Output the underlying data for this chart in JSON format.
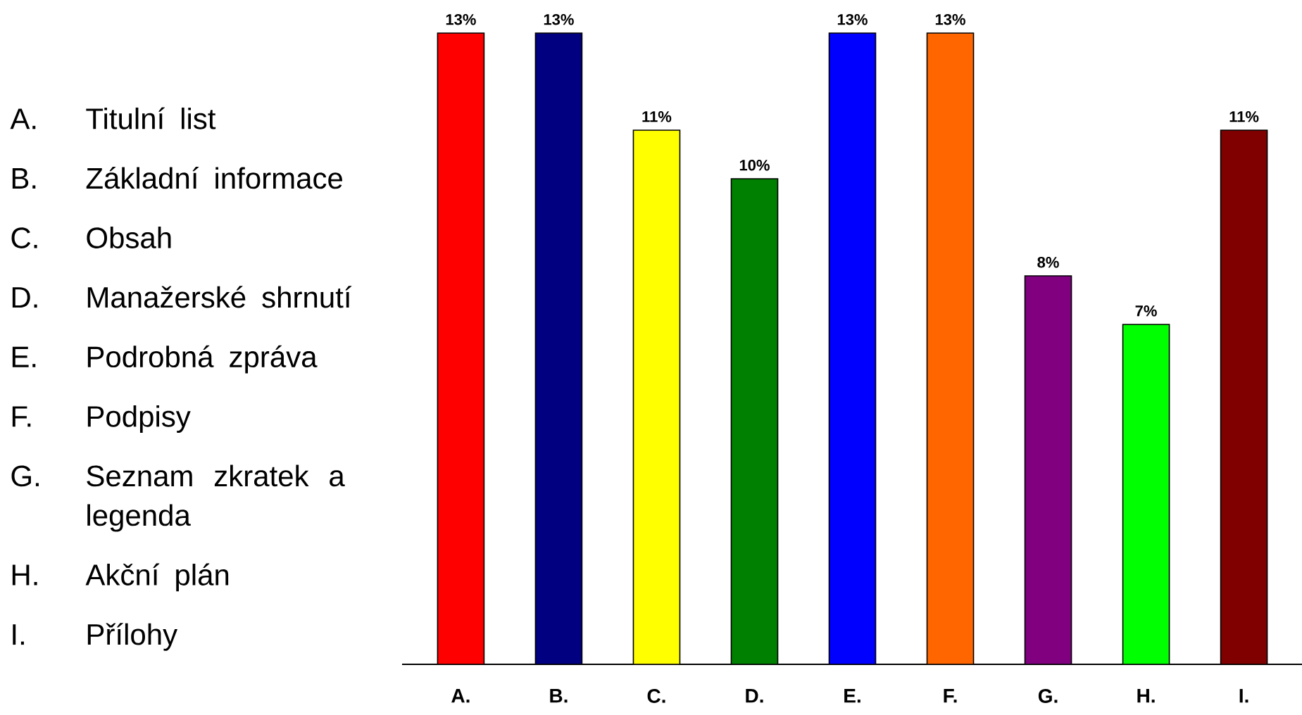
{
  "chart_data": {
    "type": "bar",
    "categories": [
      "A.",
      "B.",
      "C.",
      "D.",
      "E.",
      "F.",
      "G.",
      "H.",
      "I."
    ],
    "values": [
      13,
      13,
      11,
      10,
      13,
      13,
      8,
      7,
      11
    ],
    "value_labels": [
      "13%",
      "13%",
      "11%",
      "10%",
      "13%",
      "13%",
      "8%",
      "7%",
      "11%"
    ],
    "colors": [
      "#ff0000",
      "#000080",
      "#ffff00",
      "#008000",
      "#0000ff",
      "#ff6600",
      "#800080",
      "#00ff00",
      "#800000"
    ],
    "annotations": [
      "Titulní list",
      "Základní informace",
      "Obsah",
      "Manažerské shrnutí",
      "Podrobná zpráva",
      "Podpisy",
      "Seznam zkratek a legenda",
      "Akční plán",
      "Přílohy"
    ]
  }
}
